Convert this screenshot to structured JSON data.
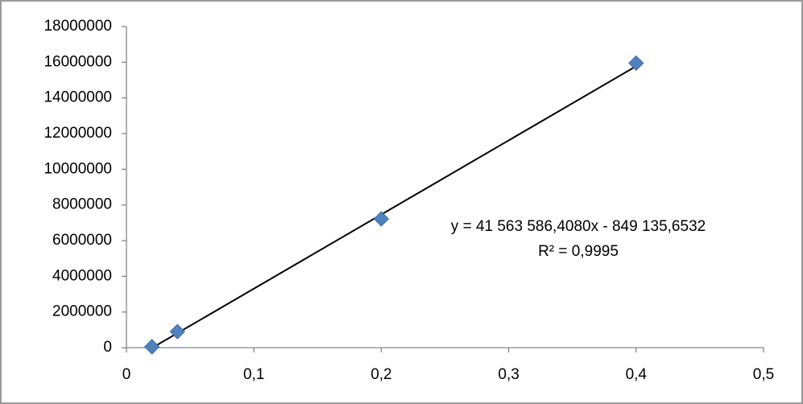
{
  "chart_data": {
    "type": "scatter",
    "series": [
      {
        "color": "#4f81bd",
        "x": [
          0.02,
          0.04,
          0.2,
          0.4
        ],
        "values": [
          50000,
          900000,
          7220000,
          15950000
        ]
      }
    ],
    "xlim": [
      0,
      0.5
    ],
    "xticks": [
      0,
      {
        "value": 0.1,
        "label": "0,1"
      },
      {
        "value": 0.2,
        "label": "0,2"
      },
      {
        "value": 0.3,
        "label": "0,3"
      },
      {
        "value": 0.4,
        "label": "0,4"
      },
      {
        "value": 0.5,
        "label": "0,5"
      }
    ],
    "ylim": [
      0,
      18000000
    ],
    "yticks": [
      0,
      2000000,
      4000000,
      6000000,
      8000000,
      10000000,
      12000000,
      14000000,
      16000000,
      18000000
    ],
    "grid": false,
    "trendline": {
      "slope": 41563586.408,
      "intercept": -849135.6532,
      "color": "#000000",
      "equation": "y = 41 563 586,4080x - 849 135,6532",
      "r2_label": "R² = 0,9995"
    }
  }
}
